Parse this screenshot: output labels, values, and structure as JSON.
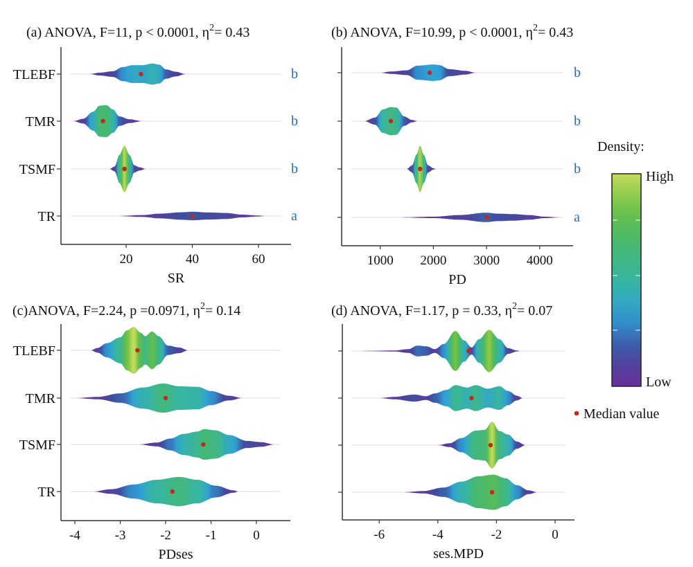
{
  "chart_data": [
    {
      "type": "violin-density",
      "title": {
        "prefix": "(a) ANOVA, F=11, p < 0.0001, η",
        "sup": "2",
        "suffix": "= 0.43"
      },
      "xlabel": "SR",
      "xticks": [
        20,
        40,
        60
      ],
      "xlim": [
        0.3,
        69.8
      ],
      "show_category_labels": true,
      "categories": [
        "TLEBF",
        "TMR",
        "TSMF",
        "TR"
      ],
      "letters": [
        "b",
        "b",
        "b",
        "a"
      ],
      "series": [
        {
          "category": "TLEBF",
          "median": 24.5,
          "density": [
            [
              9,
              0
            ],
            [
              12,
              0.06
            ],
            [
              16,
              0.12
            ],
            [
              19,
              0.3
            ],
            [
              22,
              0.38
            ],
            [
              25,
              0.38
            ],
            [
              28,
              0.45
            ],
            [
              30,
              0.4
            ],
            [
              32,
              0.2
            ],
            [
              35,
              0.1
            ],
            [
              38,
              0
            ]
          ]
        },
        {
          "category": "TMR",
          "median": 13,
          "density": [
            [
              4,
              0
            ],
            [
              7,
              0.1
            ],
            [
              10,
              0.4
            ],
            [
              12,
              0.66
            ],
            [
              14,
              0.68
            ],
            [
              16,
              0.5
            ],
            [
              18,
              0.2
            ],
            [
              21,
              0.08
            ],
            [
              25,
              0
            ]
          ]
        },
        {
          "category": "TSMF",
          "median": 19.5,
          "density": [
            [
              15,
              0
            ],
            [
              16.5,
              0.1
            ],
            [
              18,
              0.6
            ],
            [
              19.5,
              1
            ],
            [
              21,
              0.6
            ],
            [
              22.5,
              0.15
            ],
            [
              24,
              0.07
            ],
            [
              26,
              0
            ]
          ]
        },
        {
          "category": "TR",
          "median": 40,
          "density": [
            [
              17,
              0
            ],
            [
              25,
              0.04
            ],
            [
              30,
              0.1
            ],
            [
              37,
              0.16
            ],
            [
              40,
              0.18
            ],
            [
              45,
              0.15
            ],
            [
              50,
              0.13
            ],
            [
              55,
              0.06
            ],
            [
              60,
              0.02
            ],
            [
              62,
              0
            ]
          ]
        }
      ]
    },
    {
      "type": "violin-density",
      "title": {
        "prefix": "(b) ANOVA, F=10.99, p < 0.0001, η",
        "sup": "2",
        "suffix": "= 0.43"
      },
      "xlabel": "PD",
      "xticks": [
        1000,
        2000,
        3000,
        4000
      ],
      "xlim": [
        275,
        4630
      ],
      "show_category_labels": false,
      "categories": [
        "TLEBF",
        "TMR",
        "TSMF",
        "TR"
      ],
      "letters": [
        "b",
        "b",
        "b",
        "a"
      ],
      "series": [
        {
          "category": "TLEBF",
          "median": 1930,
          "density": [
            [
              1000,
              0
            ],
            [
              1200,
              0.05
            ],
            [
              1500,
              0.1
            ],
            [
              1700,
              0.3
            ],
            [
              2000,
              0.35
            ],
            [
              2100,
              0.33
            ],
            [
              2300,
              0.15
            ],
            [
              2600,
              0.08
            ],
            [
              2800,
              0
            ]
          ]
        },
        {
          "category": "TMR",
          "median": 1200,
          "density": [
            [
              700,
              0
            ],
            [
              900,
              0.15
            ],
            [
              1050,
              0.5
            ],
            [
              1200,
              0.6
            ],
            [
              1300,
              0.58
            ],
            [
              1450,
              0.2
            ],
            [
              1600,
              0.05
            ],
            [
              1700,
              0
            ]
          ]
        },
        {
          "category": "TSMF",
          "median": 1750,
          "density": [
            [
              1500,
              0
            ],
            [
              1600,
              0.15
            ],
            [
              1680,
              0.6
            ],
            [
              1750,
              1
            ],
            [
              1820,
              0.6
            ],
            [
              1900,
              0.15
            ],
            [
              2000,
              0.03
            ],
            [
              2050,
              0
            ]
          ]
        },
        {
          "category": "TR",
          "median": 3000,
          "density": [
            [
              1300,
              0
            ],
            [
              2000,
              0.03
            ],
            [
              2500,
              0.1
            ],
            [
              3000,
              0.2
            ],
            [
              3200,
              0.16
            ],
            [
              3500,
              0.14
            ],
            [
              3800,
              0.1
            ],
            [
              4100,
              0.03
            ],
            [
              4400,
              0
            ]
          ]
        }
      ]
    },
    {
      "type": "violin-density",
      "title": {
        "prefix": "(c)ANOVA, F=2.24, p =0.0971, η",
        "sup": "2",
        "suffix": "= 0.14"
      },
      "xlabel": "PDses",
      "xticks": [
        -4,
        -3,
        -2,
        -1,
        0
      ],
      "xlim": [
        -4.3,
        0.75
      ],
      "show_category_labels": true,
      "categories": [
        "TLEBF",
        "TMR",
        "TSMF",
        "TR"
      ],
      "letters": [],
      "series": [
        {
          "category": "TLEBF",
          "median": -2.62,
          "density": [
            [
              -3.65,
              0
            ],
            [
              -3.5,
              0.1
            ],
            [
              -3.3,
              0.3
            ],
            [
              -3.0,
              0.55
            ],
            [
              -2.85,
              0.85
            ],
            [
              -2.7,
              1
            ],
            [
              -2.55,
              0.75
            ],
            [
              -2.45,
              0.6
            ],
            [
              -2.3,
              0.8
            ],
            [
              -2.15,
              0.6
            ],
            [
              -1.95,
              0.2
            ],
            [
              -1.7,
              0.12
            ],
            [
              -1.5,
              0
            ]
          ]
        },
        {
          "category": "TMR",
          "median": -2.0,
          "density": [
            [
              -4.0,
              0
            ],
            [
              -3.5,
              0.05
            ],
            [
              -3.0,
              0.2
            ],
            [
              -2.5,
              0.45
            ],
            [
              -2.05,
              0.62
            ],
            [
              -1.7,
              0.5
            ],
            [
              -1.3,
              0.48
            ],
            [
              -1.0,
              0.3
            ],
            [
              -0.6,
              0.1
            ],
            [
              -0.3,
              0
            ]
          ]
        },
        {
          "category": "TSMF",
          "median": -1.17,
          "density": [
            [
              -2.6,
              0
            ],
            [
              -2.2,
              0.08
            ],
            [
              -1.9,
              0.25
            ],
            [
              -1.6,
              0.45
            ],
            [
              -1.3,
              0.55
            ],
            [
              -1.15,
              0.65
            ],
            [
              -0.9,
              0.6
            ],
            [
              -0.6,
              0.4
            ],
            [
              -0.2,
              0.15
            ],
            [
              0.1,
              0.1
            ],
            [
              0.4,
              0
            ]
          ]
        },
        {
          "category": "TR",
          "median": -1.85,
          "density": [
            [
              -3.6,
              0
            ],
            [
              -3.2,
              0.1
            ],
            [
              -2.7,
              0.3
            ],
            [
              -2.2,
              0.5
            ],
            [
              -1.7,
              0.62
            ],
            [
              -1.3,
              0.5
            ],
            [
              -0.9,
              0.25
            ],
            [
              -0.5,
              0.05
            ],
            [
              -0.4,
              0
            ]
          ]
        }
      ]
    },
    {
      "type": "violin-density",
      "title": {
        "prefix": "(d) ANOVA, F=1.17, p = 0.33, η",
        "sup": "2",
        "suffix": "= 0.07"
      },
      "xlabel": "ses.MPD",
      "xticks": [
        -6,
        -4,
        -2,
        0
      ],
      "xlim": [
        -7.3,
        0.67
      ],
      "show_category_labels": false,
      "categories": [
        "TLEBF",
        "TMR",
        "TSMF",
        "TR"
      ],
      "letters": [],
      "series": [
        {
          "category": "TLEBF",
          "median": -2.95,
          "density": [
            [
              -6.8,
              0
            ],
            [
              -5.5,
              0.02
            ],
            [
              -5.0,
              0.08
            ],
            [
              -4.7,
              0.23
            ],
            [
              -4.4,
              0.2
            ],
            [
              -4.1,
              0.08
            ],
            [
              -3.8,
              0.3
            ],
            [
              -3.4,
              0.85
            ],
            [
              -3.1,
              0.45
            ],
            [
              -2.85,
              0.15
            ],
            [
              -2.6,
              0.5
            ],
            [
              -2.25,
              0.9
            ],
            [
              -1.9,
              0.5
            ],
            [
              -1.6,
              0.12
            ],
            [
              -1.3,
              0.02
            ],
            [
              -1.2,
              0
            ]
          ]
        },
        {
          "category": "TMR",
          "median": -2.85,
          "density": [
            [
              -6.0,
              0
            ],
            [
              -5.5,
              0.05
            ],
            [
              -4.8,
              0.15
            ],
            [
              -4.4,
              0.08
            ],
            [
              -4.1,
              0.2
            ],
            [
              -3.7,
              0.35
            ],
            [
              -3.4,
              0.55
            ],
            [
              -3.0,
              0.45
            ],
            [
              -2.7,
              0.55
            ],
            [
              -2.3,
              0.4
            ],
            [
              -1.9,
              0.5
            ],
            [
              -1.6,
              0.3
            ],
            [
              -1.3,
              0.1
            ],
            [
              -1.1,
              0
            ]
          ]
        },
        {
          "category": "TSMF",
          "median": -2.2,
          "density": [
            [
              -4.0,
              0
            ],
            [
              -3.6,
              0.08
            ],
            [
              -3.2,
              0.3
            ],
            [
              -2.7,
              0.62
            ],
            [
              -2.4,
              0.65
            ],
            [
              -2.15,
              1.0
            ],
            [
              -1.9,
              0.6
            ],
            [
              -1.6,
              0.45
            ],
            [
              -1.3,
              0.15
            ],
            [
              -1.0,
              0
            ]
          ]
        },
        {
          "category": "TR",
          "median": -2.15,
          "density": [
            [
              -5.2,
              0
            ],
            [
              -4.5,
              0.05
            ],
            [
              -3.8,
              0.2
            ],
            [
              -3.2,
              0.45
            ],
            [
              -2.6,
              0.68
            ],
            [
              -2.1,
              0.75
            ],
            [
              -1.7,
              0.6
            ],
            [
              -1.3,
              0.3
            ],
            [
              -0.9,
              0.08
            ],
            [
              -0.6,
              0
            ]
          ]
        }
      ]
    }
  ],
  "legend": {
    "density_title": "Density:",
    "high_label": "High",
    "low_label": "Low",
    "median_label": "Median value"
  },
  "colors": {
    "density_scale": [
      "#6a2f9a",
      "#3f4f9f",
      "#2fa0d6",
      "#38b5a0",
      "#46b870",
      "#6bbf45",
      "#c4dc5c"
    ],
    "median_dot": "#c0281e",
    "group_letters": "#2a6ebb"
  }
}
